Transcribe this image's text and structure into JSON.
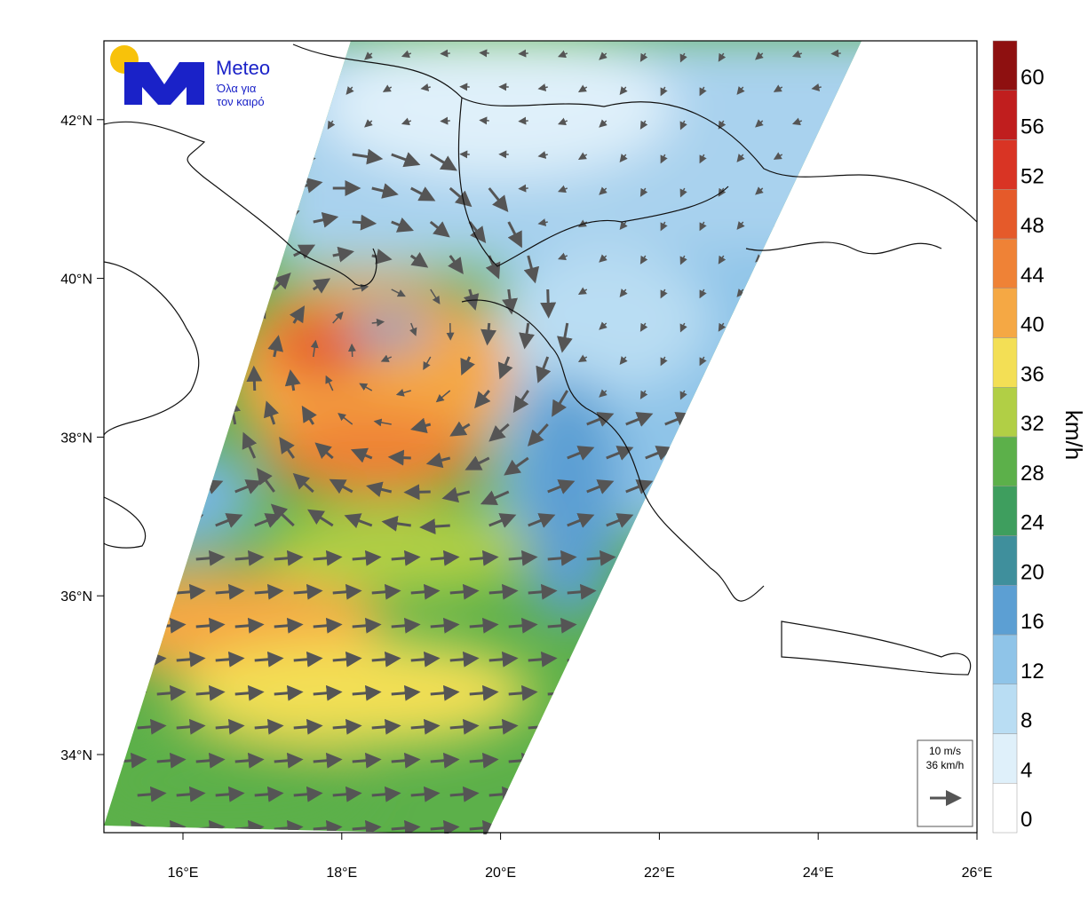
{
  "logo": {
    "name": "Meteo",
    "tagline": [
      "Όλα για",
      "τον καιρό"
    ]
  },
  "map": {
    "lat_labels": [
      "34°N",
      "36°N",
      "38°N",
      "40°N",
      "42°N"
    ],
    "lon_labels": [
      "16°E",
      "18°E",
      "20°E",
      "22°E",
      "24°E",
      "26°E"
    ]
  },
  "colorbar": {
    "title": "km/h",
    "labels": [
      "0",
      "4",
      "8",
      "12",
      "16",
      "20",
      "24",
      "28",
      "32",
      "36",
      "40",
      "44",
      "48",
      "52",
      "56",
      "60"
    ],
    "colors": [
      "#ffffff",
      "#dff0fa",
      "#b9ddf3",
      "#8fc4e8",
      "#5c9fd3",
      "#3f8f9c",
      "#3e9e5e",
      "#5cb04a",
      "#b1cf45",
      "#f3df55",
      "#f5a844",
      "#ef8236",
      "#e55a2a",
      "#d93424",
      "#c01e1e",
      "#8e1010"
    ]
  },
  "legend": {
    "speed_ms": "10 m/s",
    "speed_kmh": "36 km/h"
  }
}
